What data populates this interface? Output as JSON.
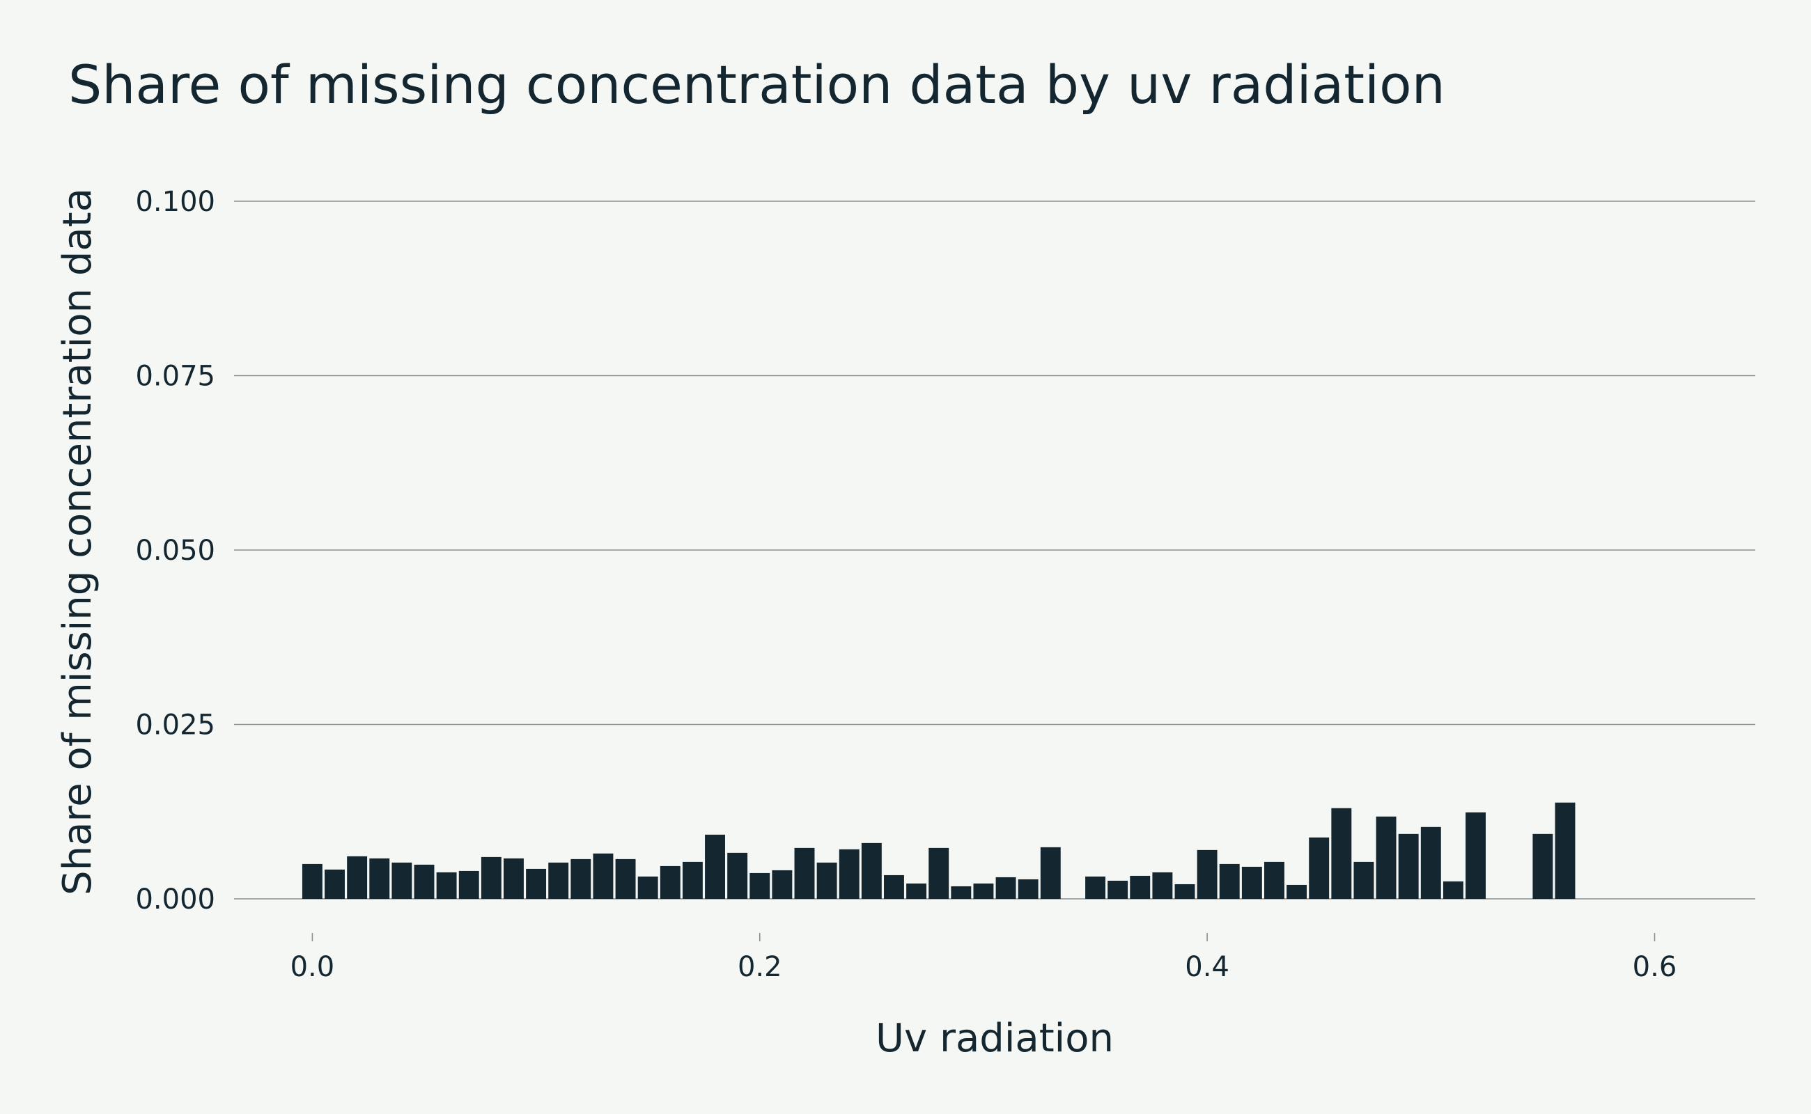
{
  "chart_data": {
    "type": "bar",
    "title": "Share of missing concentration data by uv radiation",
    "xlabel": "Uv radiation",
    "ylabel": "Share of missing concentration data",
    "xlim": [
      -0.035,
      0.645
    ],
    "ylim": [
      0,
      0.1
    ],
    "xticks": [
      0.0,
      0.2,
      0.4,
      0.6
    ],
    "xtick_labels": [
      "0.0",
      "0.2",
      "0.4",
      "0.6"
    ],
    "yticks": [
      0.0,
      0.025,
      0.05,
      0.075,
      0.1
    ],
    "ytick_labels": [
      "0.000",
      "0.025",
      "0.050",
      "0.075",
      "0.100"
    ],
    "grid": "horizontal",
    "bar_width": 0.009,
    "bar_color": "#14262f",
    "x": [
      0.0,
      0.01,
      0.02,
      0.03,
      0.04,
      0.05,
      0.06,
      0.07,
      0.08,
      0.09,
      0.1,
      0.11,
      0.12,
      0.13,
      0.14,
      0.15,
      0.16,
      0.17,
      0.18,
      0.19,
      0.2,
      0.21,
      0.22,
      0.23,
      0.24,
      0.25,
      0.26,
      0.27,
      0.28,
      0.29,
      0.3,
      0.31,
      0.32,
      0.33,
      0.35,
      0.36,
      0.37,
      0.38,
      0.39,
      0.4,
      0.41,
      0.42,
      0.43,
      0.44,
      0.45,
      0.46,
      0.47,
      0.48,
      0.49,
      0.5,
      0.51,
      0.52,
      0.55,
      0.56
    ],
    "values": [
      0.005,
      0.0042,
      0.0061,
      0.0058,
      0.0052,
      0.0049,
      0.0038,
      0.004,
      0.006,
      0.0058,
      0.0043,
      0.0052,
      0.0057,
      0.0065,
      0.0057,
      0.0032,
      0.0047,
      0.0053,
      0.0092,
      0.0066,
      0.0037,
      0.0041,
      0.0073,
      0.0052,
      0.0071,
      0.008,
      0.0034,
      0.0022,
      0.0073,
      0.0018,
      0.0022,
      0.0031,
      0.0028,
      0.0074,
      0.0032,
      0.0026,
      0.0033,
      0.0038,
      0.0021,
      0.007,
      0.005,
      0.0046,
      0.0053,
      0.002,
      0.0088,
      0.013,
      0.0053,
      0.0118,
      0.0093,
      0.0103,
      0.0025,
      0.0124,
      0.0093,
      0.0138
    ]
  }
}
